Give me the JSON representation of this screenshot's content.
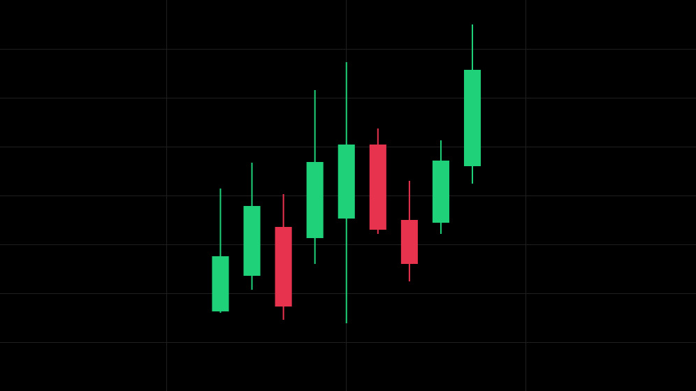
{
  "chart_data": {
    "type": "candlestick",
    "x": [
      0,
      1,
      2,
      3,
      4,
      5,
      6,
      7,
      8
    ],
    "open": [
      11.5,
      16.6,
      23.4,
      22.0,
      24.8,
      35.2,
      24.4,
      24.2,
      32.3
    ],
    "high": [
      29.0,
      32.7,
      28.2,
      43.1,
      47.1,
      37.6,
      30.1,
      35.9,
      52.5
    ],
    "low": [
      11.2,
      14.5,
      10.2,
      18.2,
      9.7,
      22.5,
      15.7,
      22.5,
      29.7
    ],
    "close": [
      19.2,
      26.4,
      12.2,
      32.7,
      35.2,
      23.2,
      18.3,
      32.9,
      45.9
    ],
    "colors": [
      "#1fd27a",
      "#1fd27a",
      "#e8334f",
      "#1fd27a",
      "#1fd27a",
      "#e8334f",
      "#e8334f",
      "#1fd27a",
      "#1fd27a"
    ],
    "xlim": [
      -7,
      15.1
    ],
    "ylim": [
      0,
      56
    ],
    "xticks": [
      -1.7,
      4,
      9.7
    ],
    "yticks": [
      0,
      7,
      14,
      21,
      28,
      35,
      42,
      49,
      56
    ],
    "grid": true,
    "tick_labels": false
  }
}
